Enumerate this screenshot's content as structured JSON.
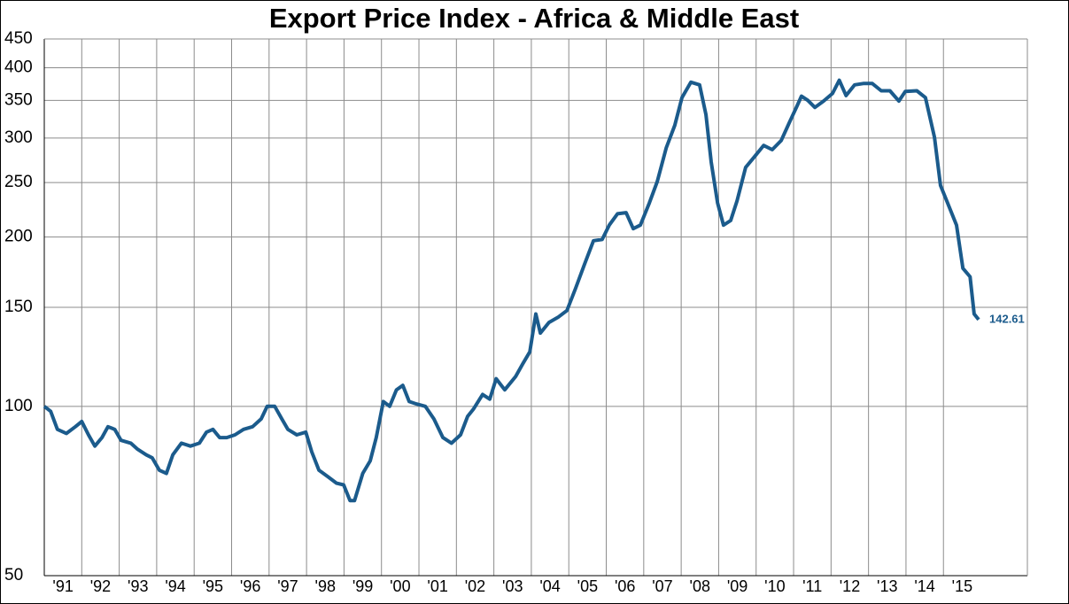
{
  "chart_data": {
    "type": "line",
    "title": "Export Price Index - Africa & Middle East",
    "x": [
      1991.0,
      1991.17,
      1991.35,
      1991.59,
      1991.83,
      1992.0,
      1992.18,
      1992.35,
      1992.54,
      1992.7,
      1992.88,
      1993.05,
      1993.31,
      1993.48,
      1993.72,
      1993.88,
      1994.07,
      1994.26,
      1994.43,
      1994.66,
      1994.9,
      1995.14,
      1995.33,
      1995.5,
      1995.68,
      1995.87,
      1996.09,
      1996.32,
      1996.56,
      1996.79,
      1996.95,
      1997.15,
      1997.34,
      1997.5,
      1997.74,
      1997.98,
      1998.14,
      1998.33,
      1998.57,
      1998.8,
      1998.99,
      1999.16,
      1999.28,
      1999.5,
      1999.7,
      1999.86,
      2000.05,
      2000.22,
      2000.4,
      2000.57,
      2000.74,
      2000.93,
      2001.17,
      2001.4,
      2001.64,
      2001.87,
      2002.11,
      2002.3,
      2002.46,
      2002.7,
      2002.89,
      2003.06,
      2003.29,
      2003.58,
      2003.77,
      2003.96,
      2004.12,
      2004.24,
      2004.47,
      2004.71,
      2004.95,
      2005.18,
      2005.42,
      2005.66,
      2005.89,
      2006.08,
      2006.3,
      2006.53,
      2006.72,
      2006.91,
      2007.15,
      2007.36,
      2007.6,
      2007.83,
      2008.02,
      2008.26,
      2008.49,
      2008.66,
      2008.8,
      2008.97,
      2009.13,
      2009.32,
      2009.49,
      2009.72,
      2009.96,
      2010.2,
      2010.43,
      2010.67,
      2010.91,
      2011.1,
      2011.21,
      2011.38,
      2011.57,
      2011.8,
      2012.04,
      2012.22,
      2012.4,
      2012.63,
      2012.86,
      2013.1,
      2013.34,
      2013.57,
      2013.81,
      2013.98,
      2014.29,
      2014.52,
      2014.76,
      2014.92,
      2015.11,
      2015.35,
      2015.52,
      2015.71,
      2015.82,
      2015.94
    ],
    "series": [
      {
        "name": "Export Price Index",
        "color": "#1b5b8c",
        "values": [
          100,
          98,
          91,
          89.5,
          92,
          94,
          89,
          85,
          88,
          92,
          91,
          87,
          86,
          84,
          82,
          81,
          77,
          76,
          82,
          86,
          85,
          86,
          90,
          91,
          88,
          88,
          89,
          91,
          92,
          95,
          100,
          100,
          95,
          91,
          89,
          90,
          83,
          77,
          75,
          73,
          72.5,
          68,
          68,
          76,
          80,
          88,
          102,
          100,
          107,
          109,
          102,
          101,
          100,
          95,
          88,
          86,
          89,
          96,
          99,
          105,
          103,
          112,
          107,
          113,
          119,
          125,
          146,
          135,
          141,
          144,
          148,
          162,
          179,
          197,
          198,
          210,
          220,
          221,
          207,
          210,
          230,
          251,
          288,
          316,
          354,
          377,
          373,
          330,
          272,
          230,
          210,
          214,
          232,
          266,
          278,
          291,
          286,
          297,
          322,
          343,
          356,
          350,
          340,
          349,
          360,
          380,
          357,
          373,
          375,
          375,
          364,
          364,
          349,
          363,
          364,
          354,
          301,
          247,
          230,
          210,
          176,
          170,
          146,
          142.61
        ]
      }
    ],
    "xlim": [
      1991,
      2017.24
    ],
    "xticks": [
      {
        "value": 1991,
        "label": "'91"
      },
      {
        "value": 1992,
        "label": "'92"
      },
      {
        "value": 1993,
        "label": "'93"
      },
      {
        "value": 1994,
        "label": "'94"
      },
      {
        "value": 1995,
        "label": "'95"
      },
      {
        "value": 1996,
        "label": "'96"
      },
      {
        "value": 1997,
        "label": "'97"
      },
      {
        "value": 1998,
        "label": "'98"
      },
      {
        "value": 1999,
        "label": "'99"
      },
      {
        "value": 2000,
        "label": "'00"
      },
      {
        "value": 2001,
        "label": "'01"
      },
      {
        "value": 2002,
        "label": "'02"
      },
      {
        "value": 2003,
        "label": "'03"
      },
      {
        "value": 2004,
        "label": "'04"
      },
      {
        "value": 2005,
        "label": "'05"
      },
      {
        "value": 2006,
        "label": "'06"
      },
      {
        "value": 2007,
        "label": "'07"
      },
      {
        "value": 2008,
        "label": "'08"
      },
      {
        "value": 2009,
        "label": "'09"
      },
      {
        "value": 2010,
        "label": "'10"
      },
      {
        "value": 2011,
        "label": "'11"
      },
      {
        "value": 2012,
        "label": "'12"
      },
      {
        "value": 2013,
        "label": "'13"
      },
      {
        "value": 2014,
        "label": "'14"
      },
      {
        "value": 2015,
        "label": "'15"
      }
    ],
    "ylim": [
      50,
      450
    ],
    "yticks": [
      50,
      100,
      150,
      200,
      250,
      300,
      350,
      400,
      450
    ],
    "yscale": "log",
    "grid": true
  }
}
